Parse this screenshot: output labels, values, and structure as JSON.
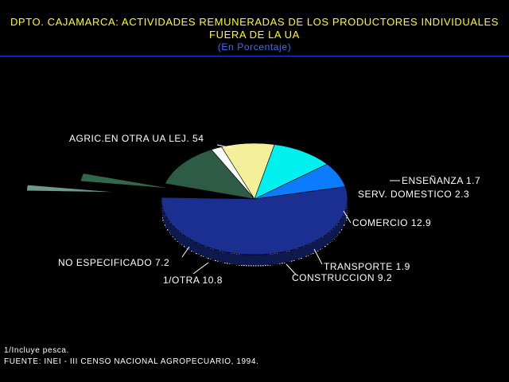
{
  "title": {
    "line1": "DPTO. CAJAMARCA: ACTIVIDADES REMUNERADAS DE LOS PRODUCTORES INDIVIDUALES",
    "line2": "FUERA DE LA UA",
    "subtitle": "(En Porcentaje)"
  },
  "chart_data": {
    "type": "pie",
    "title": "DPTO. CAJAMARCA: ACTIVIDADES REMUNERADAS DE LOS PRODUCTORES INDIVIDUALES FUERA DE LA UA",
    "subtitle": "(En Porcentaje)",
    "style": "3d-pie",
    "slices": [
      {
        "label": "AGRIC.EN OTRA UA LEJ.",
        "value": 54,
        "color": "#1a2f8f",
        "exploded": false
      },
      {
        "label": "ENSEÑANZA",
        "value": 1.7,
        "color": "#6e9a8e",
        "exploded": true
      },
      {
        "label": "SERV. DOMESTICO",
        "value": 2.3,
        "color": "#33674c",
        "exploded": true
      },
      {
        "label": "COMERCIO",
        "value": 12.9,
        "color": "#2e5b46",
        "exploded": false
      },
      {
        "label": "TRANSPORTE",
        "value": 1.9,
        "color": "#ffffff",
        "exploded": false
      },
      {
        "label": "CONSTRUCCION",
        "value": 9.2,
        "color": "#f4f09a",
        "exploded": false
      },
      {
        "label": "1/OTRA",
        "value": 10.8,
        "color": "#00f0f0",
        "exploded": false
      },
      {
        "label": "NO ESPECIFICADO",
        "value": 7.2,
        "color": "#0b7bff",
        "exploded": false
      }
    ]
  },
  "footer": {
    "note": "1/Incluye pesca.",
    "source": "FUENTE: INEI - III CENSO NACIONAL AGROPECUARIO, 1994."
  }
}
